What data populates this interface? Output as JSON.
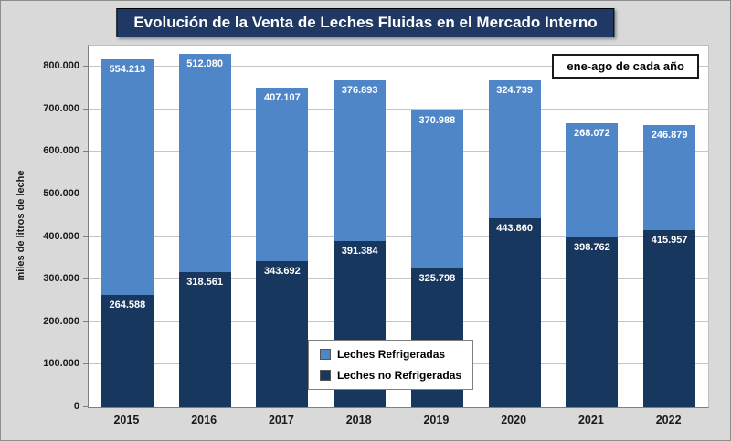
{
  "title": "Evolución de la Venta de Leches Fluidas en el Mercado Interno",
  "annotation": "ene-ago de cada año",
  "y_axis_title": "miles de litros de leche",
  "colors": {
    "title_bg": "#1F3864",
    "title_text": "#FFFFFF",
    "page_bg": "#D9D9D9",
    "plot_bg": "#FFFFFF",
    "gridline": "#C6C6C6",
    "leches_refrigeradas": "#4E86C8",
    "leches_no_refrigeradas": "#17375E"
  },
  "chart_data": {
    "type": "bar",
    "stacked": true,
    "title": "Evolución de la Venta de Leches Fluidas en el Mercado Interno",
    "xlabel": "",
    "ylabel": "miles de litros de leche",
    "annotation": "ene-ago de cada año",
    "categories": [
      "2015",
      "2016",
      "2017",
      "2018",
      "2019",
      "2020",
      "2021",
      "2022"
    ],
    "series": [
      {
        "name": "Leches Refrigeradas",
        "color": "#4E86C8",
        "stack_position": "top",
        "values": [
          554213,
          512080,
          407107,
          376893,
          370988,
          324739,
          268072,
          246879
        ],
        "labels": [
          "554.213",
          "512.080",
          "407.107",
          "376.893",
          "370.988",
          "324.739",
          "268.072",
          "246.879"
        ]
      },
      {
        "name": "Leches no Refrigeradas",
        "color": "#17375E",
        "stack_position": "bottom",
        "values": [
          264588,
          318561,
          343692,
          391384,
          325798,
          443860,
          398762,
          415957
        ],
        "labels": [
          "264.588",
          "318.561",
          "343.692",
          "391.384",
          "325.798",
          "443.860",
          "398.762",
          "415.957"
        ]
      }
    ],
    "ylim": [
      0,
      850000
    ],
    "yticks": [
      {
        "value": 0,
        "label": "0"
      },
      {
        "value": 100000,
        "label": "100.000"
      },
      {
        "value": 200000,
        "label": "200.000"
      },
      {
        "value": 300000,
        "label": "300.000"
      },
      {
        "value": 400000,
        "label": "400.000"
      },
      {
        "value": 500000,
        "label": "500.000"
      },
      {
        "value": 600000,
        "label": "600.000"
      },
      {
        "value": 700000,
        "label": "700.000"
      },
      {
        "value": 800000,
        "label": "800.000"
      }
    ],
    "grid": true,
    "legend_position": "inside-bottom-center"
  }
}
